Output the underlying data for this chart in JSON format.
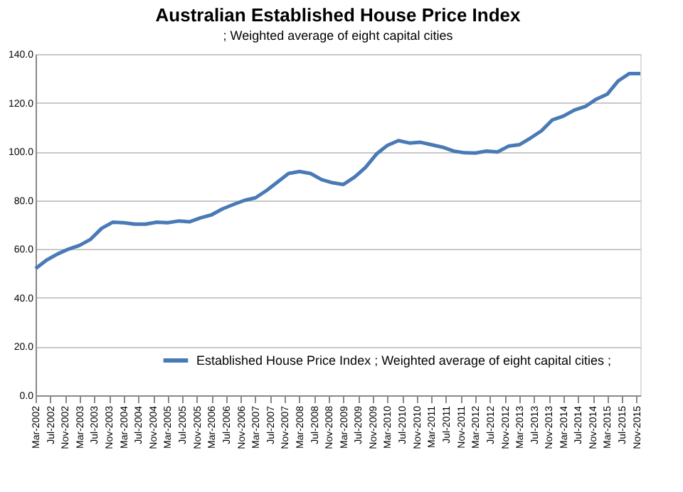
{
  "chart_data": {
    "type": "line",
    "title": "Australian Established House Price Index",
    "subtitle": "; Weighted average of eight capital cities",
    "x": [
      "2002-03",
      "2002-06",
      "2002-09",
      "2002-12",
      "2003-03",
      "2003-06",
      "2003-09",
      "2003-12",
      "2004-03",
      "2004-06",
      "2004-09",
      "2004-12",
      "2005-03",
      "2005-06",
      "2005-09",
      "2005-12",
      "2006-03",
      "2006-06",
      "2006-09",
      "2006-12",
      "2007-03",
      "2007-06",
      "2007-09",
      "2007-12",
      "2008-03",
      "2008-06",
      "2008-09",
      "2008-12",
      "2009-03",
      "2009-06",
      "2009-09",
      "2009-12",
      "2010-03",
      "2010-06",
      "2010-09",
      "2010-12",
      "2011-03",
      "2011-06",
      "2011-09",
      "2011-12",
      "2012-03",
      "2012-06",
      "2012-09",
      "2012-12",
      "2013-03",
      "2013-06",
      "2013-09",
      "2013-12",
      "2014-03",
      "2014-06",
      "2014-09",
      "2014-12",
      "2015-03",
      "2015-06",
      "2015-09",
      "2015-12"
    ],
    "series": [
      {
        "name": "Established House Price Index ;  Weighted average of eight capital cities ;",
        "color": "#4a7ab5",
        "values": [
          52,
          55.5,
          58,
          60,
          61.5,
          64,
          68.5,
          71,
          70.8,
          70.2,
          70.2,
          71,
          70.8,
          71.5,
          71.2,
          72.8,
          74,
          76.5,
          78.3,
          80,
          81,
          84,
          87.5,
          91,
          91.8,
          91,
          88.5,
          87.2,
          86.5,
          89.5,
          93.5,
          99,
          102.5,
          104.5,
          103.5,
          103.8,
          102.8,
          101.8,
          100.2,
          99.5,
          99.4,
          100.2,
          99.8,
          102.2,
          102.8,
          105.5,
          108.5,
          113,
          114.5,
          117,
          118.5,
          121.5,
          123.5,
          129,
          132,
          132
        ]
      }
    ],
    "xlim": [
      "2002-03",
      "2015-12"
    ],
    "xticks": [
      {
        "value": "2002-03",
        "label": "Mar-2002"
      },
      {
        "value": "2002-07",
        "label": "Jul-2002"
      },
      {
        "value": "2002-11",
        "label": "Nov-2002"
      },
      {
        "value": "2003-03",
        "label": "Mar-2003"
      },
      {
        "value": "2003-07",
        "label": "Jul-2003"
      },
      {
        "value": "2003-11",
        "label": "Nov-2003"
      },
      {
        "value": "2004-03",
        "label": "Mar-2004"
      },
      {
        "value": "2004-07",
        "label": "Jul-2004"
      },
      {
        "value": "2004-11",
        "label": "Nov-2004"
      },
      {
        "value": "2005-03",
        "label": "Mar-2005"
      },
      {
        "value": "2005-07",
        "label": "Jul-2005"
      },
      {
        "value": "2005-11",
        "label": "Nov-2005"
      },
      {
        "value": "2006-03",
        "label": "Mar-2006"
      },
      {
        "value": "2006-07",
        "label": "Jul-2006"
      },
      {
        "value": "2006-11",
        "label": "Nov-2006"
      },
      {
        "value": "2007-03",
        "label": "Mar-2007"
      },
      {
        "value": "2007-07",
        "label": "Jul-2007"
      },
      {
        "value": "2007-11",
        "label": "Nov-2007"
      },
      {
        "value": "2008-03",
        "label": "Mar-2008"
      },
      {
        "value": "2008-07",
        "label": "Jul-2008"
      },
      {
        "value": "2008-11",
        "label": "Nov-2008"
      },
      {
        "value": "2009-03",
        "label": "Mar-2009"
      },
      {
        "value": "2009-07",
        "label": "Jul-2009"
      },
      {
        "value": "2009-11",
        "label": "Nov-2009"
      },
      {
        "value": "2010-03",
        "label": "Mar-2010"
      },
      {
        "value": "2010-07",
        "label": "Jul-2010"
      },
      {
        "value": "2010-11",
        "label": "Nov-2010"
      },
      {
        "value": "2011-03",
        "label": "Mar-2011"
      },
      {
        "value": "2011-07",
        "label": "Jul-2011"
      },
      {
        "value": "2011-11",
        "label": "Nov-2011"
      },
      {
        "value": "2012-03",
        "label": "Mar-2012"
      },
      {
        "value": "2012-07",
        "label": "Jul-2012"
      },
      {
        "value": "2012-11",
        "label": "Nov-2012"
      },
      {
        "value": "2013-03",
        "label": "Mar-2013"
      },
      {
        "value": "2013-07",
        "label": "Jul-2013"
      },
      {
        "value": "2013-11",
        "label": "Nov-2013"
      },
      {
        "value": "2014-03",
        "label": "Mar-2014"
      },
      {
        "value": "2014-07",
        "label": "Jul-2014"
      },
      {
        "value": "2014-11",
        "label": "Nov-2014"
      },
      {
        "value": "2015-03",
        "label": "Mar-2015"
      },
      {
        "value": "2015-07",
        "label": "Jul-2015"
      },
      {
        "value": "2015-11",
        "label": "Nov-2015"
      }
    ],
    "ylim": [
      0,
      140
    ],
    "yticks": [
      {
        "value": 0,
        "label": "0.0"
      },
      {
        "value": 20,
        "label": "20.0"
      },
      {
        "value": 40,
        "label": "40.0"
      },
      {
        "value": 60,
        "label": "60.0"
      },
      {
        "value": 80,
        "label": "80.0"
      },
      {
        "value": 100,
        "label": "100.0"
      },
      {
        "value": 120,
        "label": "120.0"
      },
      {
        "value": 140,
        "label": "140.0"
      }
    ],
    "grid": "y",
    "legend": "bottom right",
    "marker": "none",
    "line_style": "solid"
  }
}
